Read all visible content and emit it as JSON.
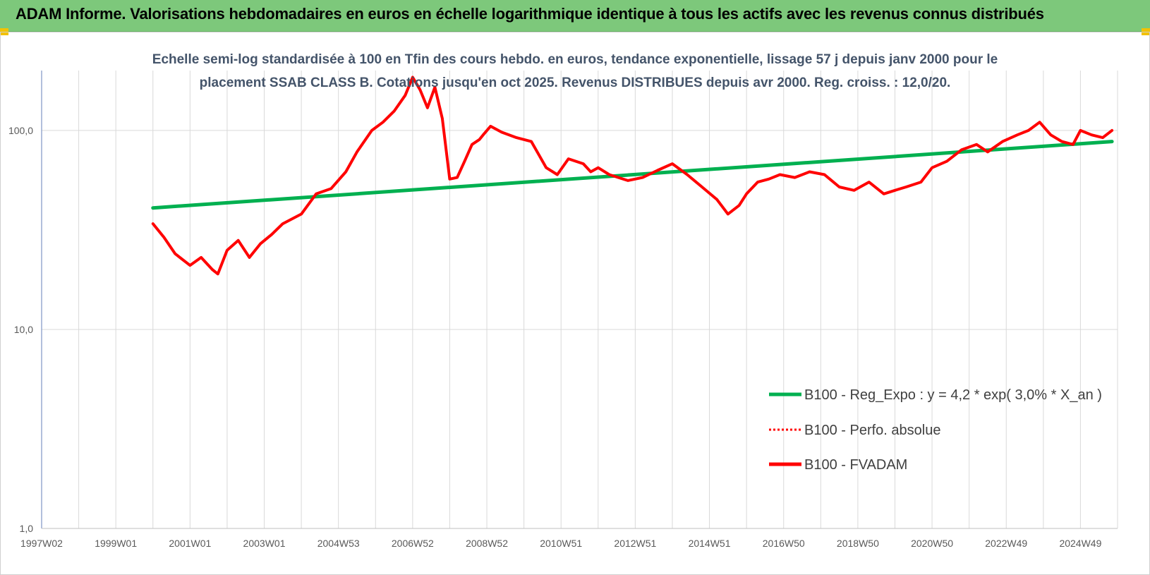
{
  "banner": {
    "title": "ADAM Informe. Valorisations hebdomadaires en euros en échelle logarithmique identique à tous les actifs avec les revenus connus distribués"
  },
  "colors": {
    "banner": "#7dc87b",
    "regression": "#00b050",
    "price": "#ff0000",
    "gridline": "#d9d9d9",
    "title": "#44546a"
  },
  "chart_data": {
    "type": "line",
    "subtitle_line1": "Echelle semi-log standardisée à 100 en Tfin des cours hebdo. en euros, tendance exponentielle, lissage 57 j depuis janv 2000 pour le",
    "subtitle_line2": "placement SSAB CLASS B. Cotations jusqu'en oct 2025. Revenus DISTRIBUES depuis avr 2000. Reg. croiss. : 12,0/20.",
    "y_scale": "log",
    "ylim": [
      1,
      200
    ],
    "y_ticks": [
      {
        "value": 1,
        "label": "1,0"
      },
      {
        "value": 10,
        "label": "10,0"
      },
      {
        "value": 100,
        "label": "100,0"
      }
    ],
    "xlim": [
      1997.0,
      2026.0
    ],
    "x_ticks": [
      {
        "value": 1997.0,
        "label": "1997W02"
      },
      {
        "value": 1999.0,
        "label": "1999W01"
      },
      {
        "value": 2001.0,
        "label": "2001W01"
      },
      {
        "value": 2003.0,
        "label": "2003W01"
      },
      {
        "value": 2005.0,
        "label": "2004W53"
      },
      {
        "value": 2007.0,
        "label": "2006W52"
      },
      {
        "value": 2009.0,
        "label": "2008W52"
      },
      {
        "value": 2011.0,
        "label": "2010W51"
      },
      {
        "value": 2013.0,
        "label": "2012W51"
      },
      {
        "value": 2015.0,
        "label": "2014W51"
      },
      {
        "value": 2017.0,
        "label": "2016W50"
      },
      {
        "value": 2019.0,
        "label": "2018W50"
      },
      {
        "value": 2021.0,
        "label": "2020W50"
      },
      {
        "value": 2023.0,
        "label": "2022W49"
      },
      {
        "value": 2025.0,
        "label": "2024W49"
      }
    ],
    "grid": {
      "vertical_every_year": true,
      "horizontal_at_ticks": true
    },
    "legend_placement": "bottom-right",
    "series": [
      {
        "name": "B100 - Reg_Expo : y = 4,2 * exp( 3,0% *  X_an )",
        "role": "regression",
        "color": "#00b050",
        "style": "solid",
        "x": [
          2000.0,
          2025.85
        ],
        "y": [
          40.8,
          88.0
        ]
      },
      {
        "name": "B100 - Perfo. absolue",
        "role": "absolute",
        "color": "#ff0000",
        "style": "dotted",
        "x": [],
        "y": []
      },
      {
        "name": "B100 - FVADAM",
        "role": "price",
        "color": "#ff0000",
        "style": "solid",
        "x": [
          2000.0,
          2000.3,
          2000.6,
          2001.0,
          2001.3,
          2001.6,
          2001.75,
          2002.0,
          2002.3,
          2002.6,
          2002.9,
          2003.2,
          2003.5,
          2004.0,
          2004.4,
          2004.8,
          2005.2,
          2005.5,
          2005.9,
          2006.2,
          2006.5,
          2006.8,
          2007.0,
          2007.2,
          2007.4,
          2007.6,
          2007.8,
          2008.0,
          2008.2,
          2008.4,
          2008.6,
          2008.8,
          2008.9,
          2009.1,
          2009.4,
          2009.8,
          2010.2,
          2010.6,
          2010.9,
          2011.2,
          2011.6,
          2011.8,
          2012.0,
          2012.3,
          2012.8,
          2013.2,
          2013.6,
          2014.0,
          2014.4,
          2014.8,
          2015.2,
          2015.5,
          2015.8,
          2016.0,
          2016.3,
          2016.6,
          2016.9,
          2017.3,
          2017.7,
          2018.1,
          2018.5,
          2018.9,
          2019.3,
          2019.7,
          2020.0,
          2020.3,
          2020.7,
          2021.0,
          2021.4,
          2021.8,
          2022.2,
          2022.5,
          2022.9,
          2023.3,
          2023.6,
          2023.9,
          2024.2,
          2024.5,
          2024.8,
          2025.0,
          2025.3,
          2025.6,
          2025.85
        ],
        "y": [
          34,
          29,
          24,
          21,
          23,
          20,
          19,
          25,
          28,
          23,
          27,
          30,
          34,
          38,
          48,
          51,
          62,
          78,
          100,
          110,
          125,
          150,
          185,
          160,
          130,
          165,
          115,
          57,
          58,
          70,
          85,
          90,
          95,
          105,
          98,
          92,
          88,
          65,
          60,
          72,
          68,
          62,
          65,
          60,
          56,
          58,
          63,
          68,
          60,
          52,
          45,
          38,
          42,
          48,
          55,
          57,
          60,
          58,
          62,
          60,
          52,
          50,
          55,
          48,
          50,
          52,
          55,
          65,
          70,
          80,
          85,
          78,
          88,
          95,
          100,
          110,
          95,
          88,
          85,
          100,
          95,
          92,
          100
        ]
      }
    ]
  }
}
